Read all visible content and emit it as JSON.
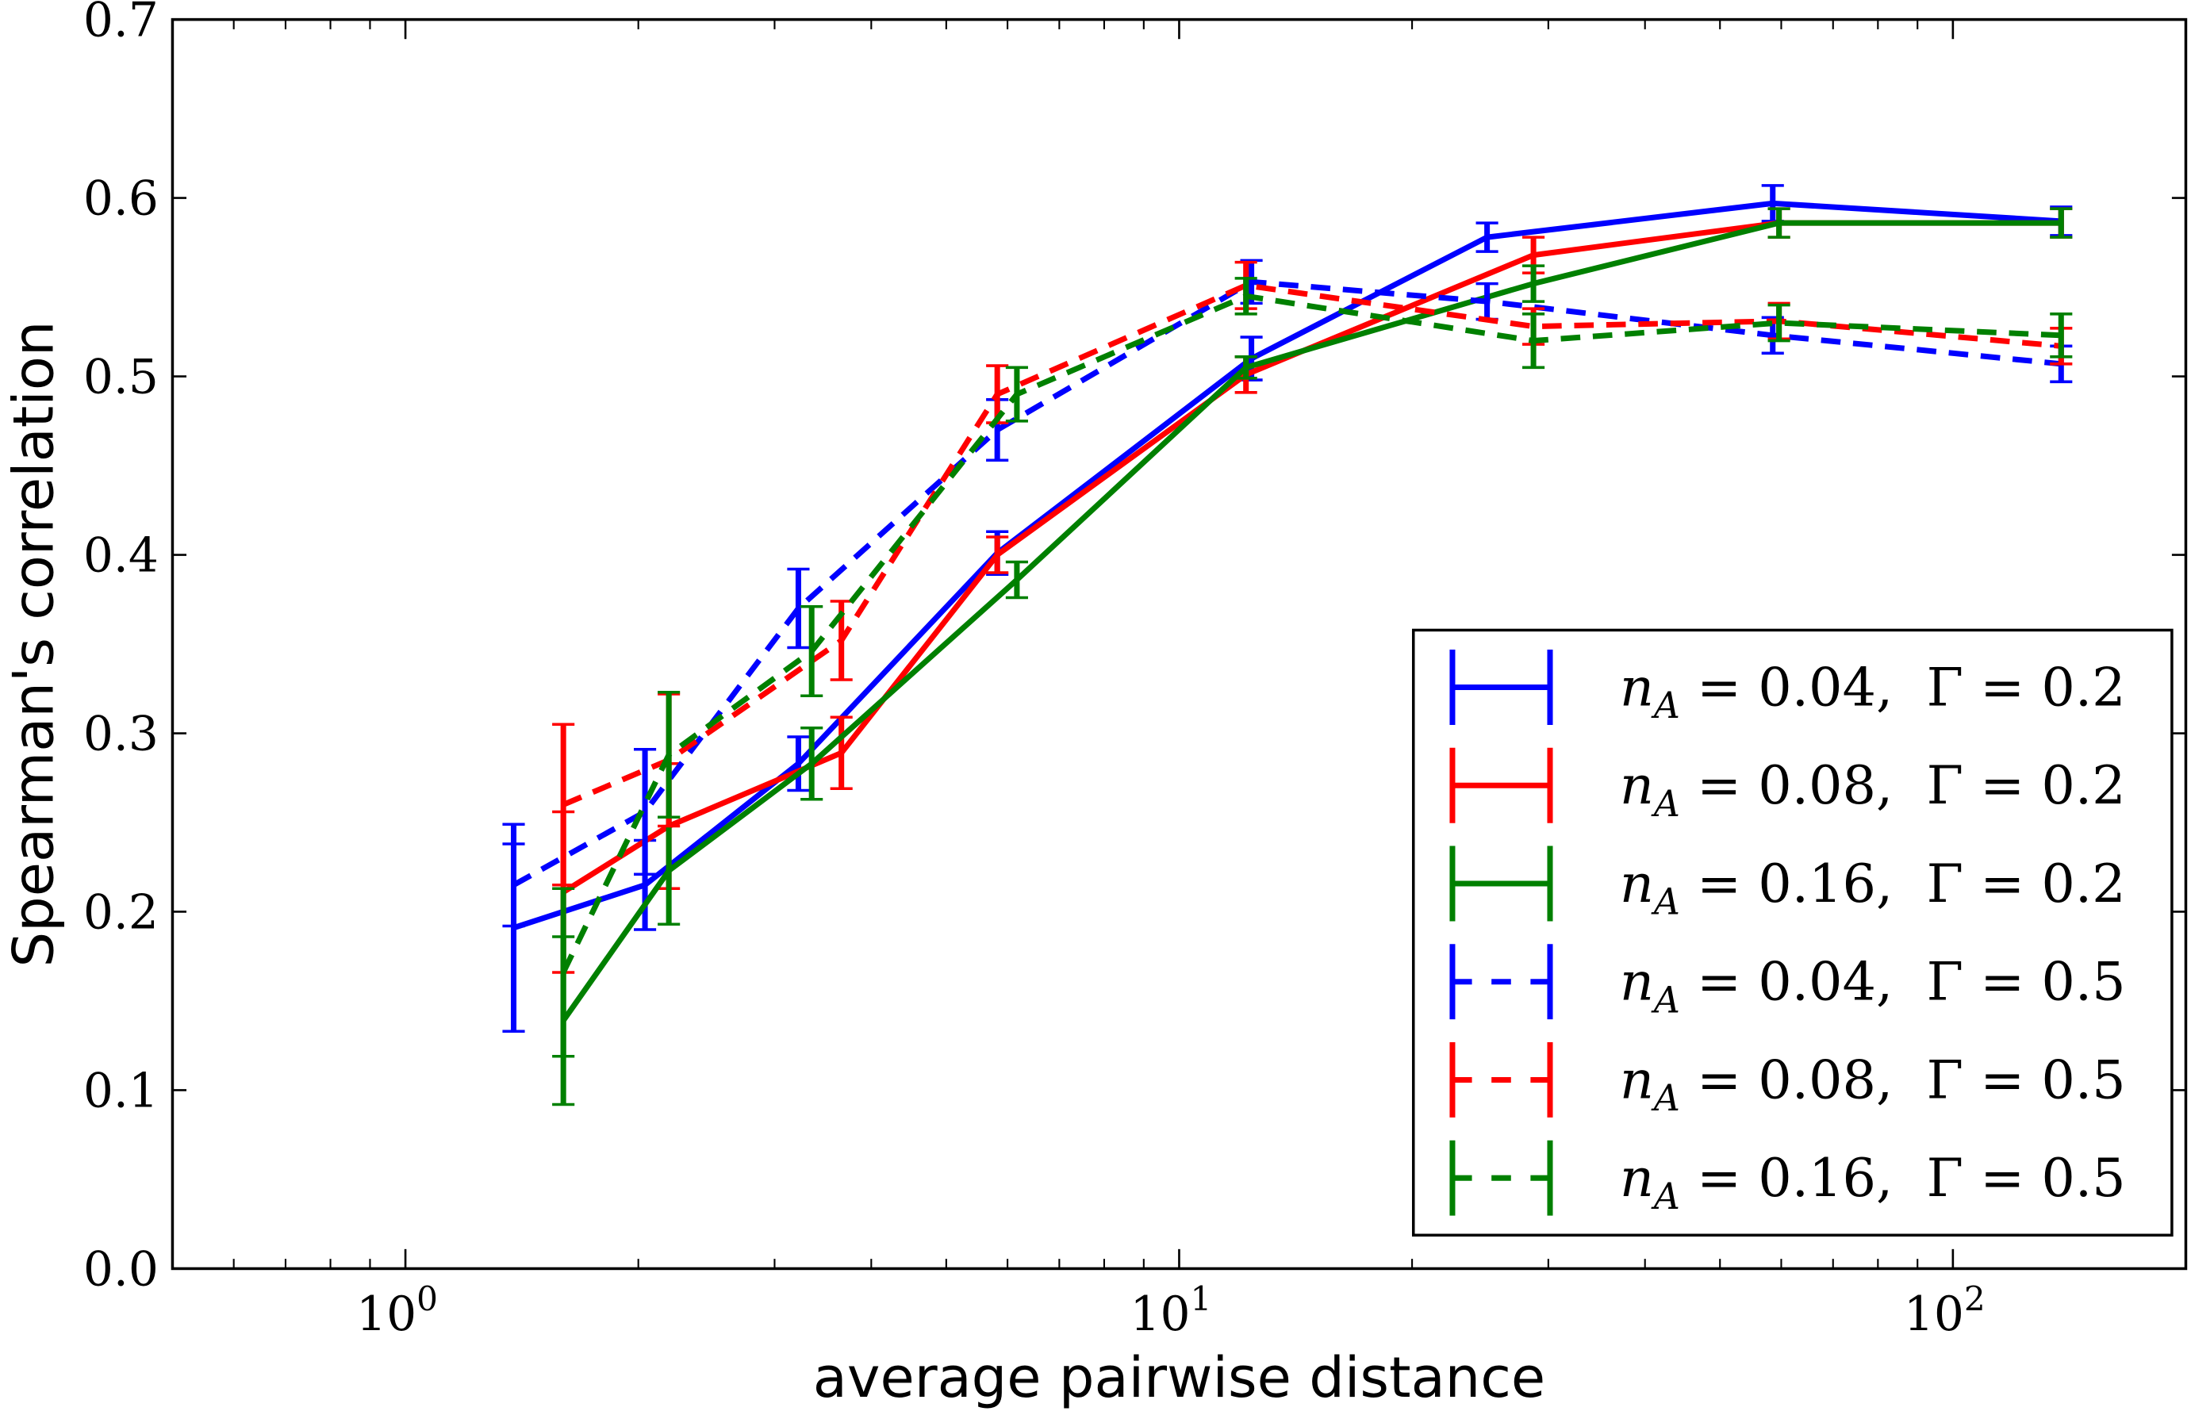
{
  "chart_data": {
    "type": "line",
    "title": "",
    "xlabel": "average pairwise distance",
    "ylabel": "Spearman's correlation",
    "xscale": "log",
    "xlim": [
      0.5,
      200
    ],
    "ylim": [
      0.0,
      0.7
    ],
    "yticks": [
      "0.0",
      "0.1",
      "0.2",
      "0.3",
      "0.4",
      "0.5",
      "0.6",
      "0.7"
    ],
    "xticks": [
      {
        "base": "10",
        "exp": "0",
        "value": 1
      },
      {
        "base": "10",
        "exp": "1",
        "value": 10
      },
      {
        "base": "10",
        "exp": "2",
        "value": 100
      }
    ],
    "grid": false,
    "legend_placement": "lower-right",
    "series": [
      {
        "name": "n_A = 0.04,  Γ = 0.2",
        "n_label": "0.04",
        "gamma_label": "0.2",
        "color": "#0000ff",
        "dash": "solid",
        "x": [
          1.38,
          2.04,
          3.22,
          5.82,
          12.4,
          25,
          58.5,
          138
        ],
        "y": [
          0.191,
          0.215,
          0.283,
          0.401,
          0.51,
          0.578,
          0.597,
          0.587
        ],
        "err": [
          0.058,
          0.025,
          0.015,
          0.012,
          0.012,
          0.008,
          0.01,
          0.008
        ]
      },
      {
        "name": "n_A = 0.08,  Γ = 0.2",
        "n_label": "0.08",
        "gamma_label": "0.2",
        "color": "#ff0000",
        "dash": "solid",
        "x": [
          1.6,
          2.19,
          3.66,
          5.82,
          12.2,
          28.7,
          59.6,
          138
        ],
        "y": [
          0.211,
          0.248,
          0.289,
          0.4,
          0.501,
          0.568,
          0.586,
          0.586
        ],
        "err": [
          0.045,
          0.035,
          0.02,
          0.01,
          0.01,
          0.01,
          0.008,
          0.008
        ]
      },
      {
        "name": "n_A = 0.16,  Γ = 0.2",
        "n_label": "0.16",
        "gamma_label": "0.2",
        "color": "#008000",
        "dash": "solid",
        "x": [
          1.6,
          2.19,
          3.35,
          6.17,
          12.2,
          28.7,
          59.6,
          138
        ],
        "y": [
          0.139,
          0.223,
          0.283,
          0.386,
          0.505,
          0.552,
          0.586,
          0.586
        ],
        "err": [
          0.047,
          0.03,
          0.02,
          0.01,
          0.006,
          0.01,
          0.008,
          0.008
        ]
      },
      {
        "name": "n_A = 0.04,  Γ = 0.5",
        "n_label": "0.04",
        "gamma_label": "0.5",
        "color": "#0000ff",
        "dash": "dashed",
        "x": [
          1.38,
          2.04,
          3.22,
          5.82,
          12.4,
          25,
          58.5,
          138
        ],
        "y": [
          0.215,
          0.256,
          0.37,
          0.47,
          0.553,
          0.542,
          0.523,
          0.507
        ],
        "err": [
          0.023,
          0.035,
          0.022,
          0.017,
          0.012,
          0.01,
          0.01,
          0.01
        ]
      },
      {
        "name": "n_A = 0.08,  Γ = 0.5",
        "n_label": "0.08",
        "gamma_label": "0.5",
        "color": "#ff0000",
        "dash": "dashed",
        "x": [
          1.6,
          2.19,
          3.66,
          5.82,
          12.2,
          28.7,
          59.6,
          138
        ],
        "y": [
          0.26,
          0.285,
          0.352,
          0.49,
          0.551,
          0.528,
          0.531,
          0.517
        ],
        "err": [
          0.045,
          0.037,
          0.022,
          0.016,
          0.013,
          0.01,
          0.01,
          0.01
        ]
      },
      {
        "name": "n_A = 0.16,  Γ = 0.5",
        "n_label": "0.16",
        "gamma_label": "0.5",
        "color": "#008000",
        "dash": "dashed",
        "x": [
          1.6,
          2.19,
          3.35,
          6.17,
          12.2,
          28.7,
          59.6,
          138
        ],
        "y": [
          0.166,
          0.288,
          0.346,
          0.49,
          0.545,
          0.52,
          0.53,
          0.523
        ],
        "err": [
          0.047,
          0.035,
          0.025,
          0.015,
          0.01,
          0.015,
          0.01,
          0.012
        ]
      }
    ]
  }
}
